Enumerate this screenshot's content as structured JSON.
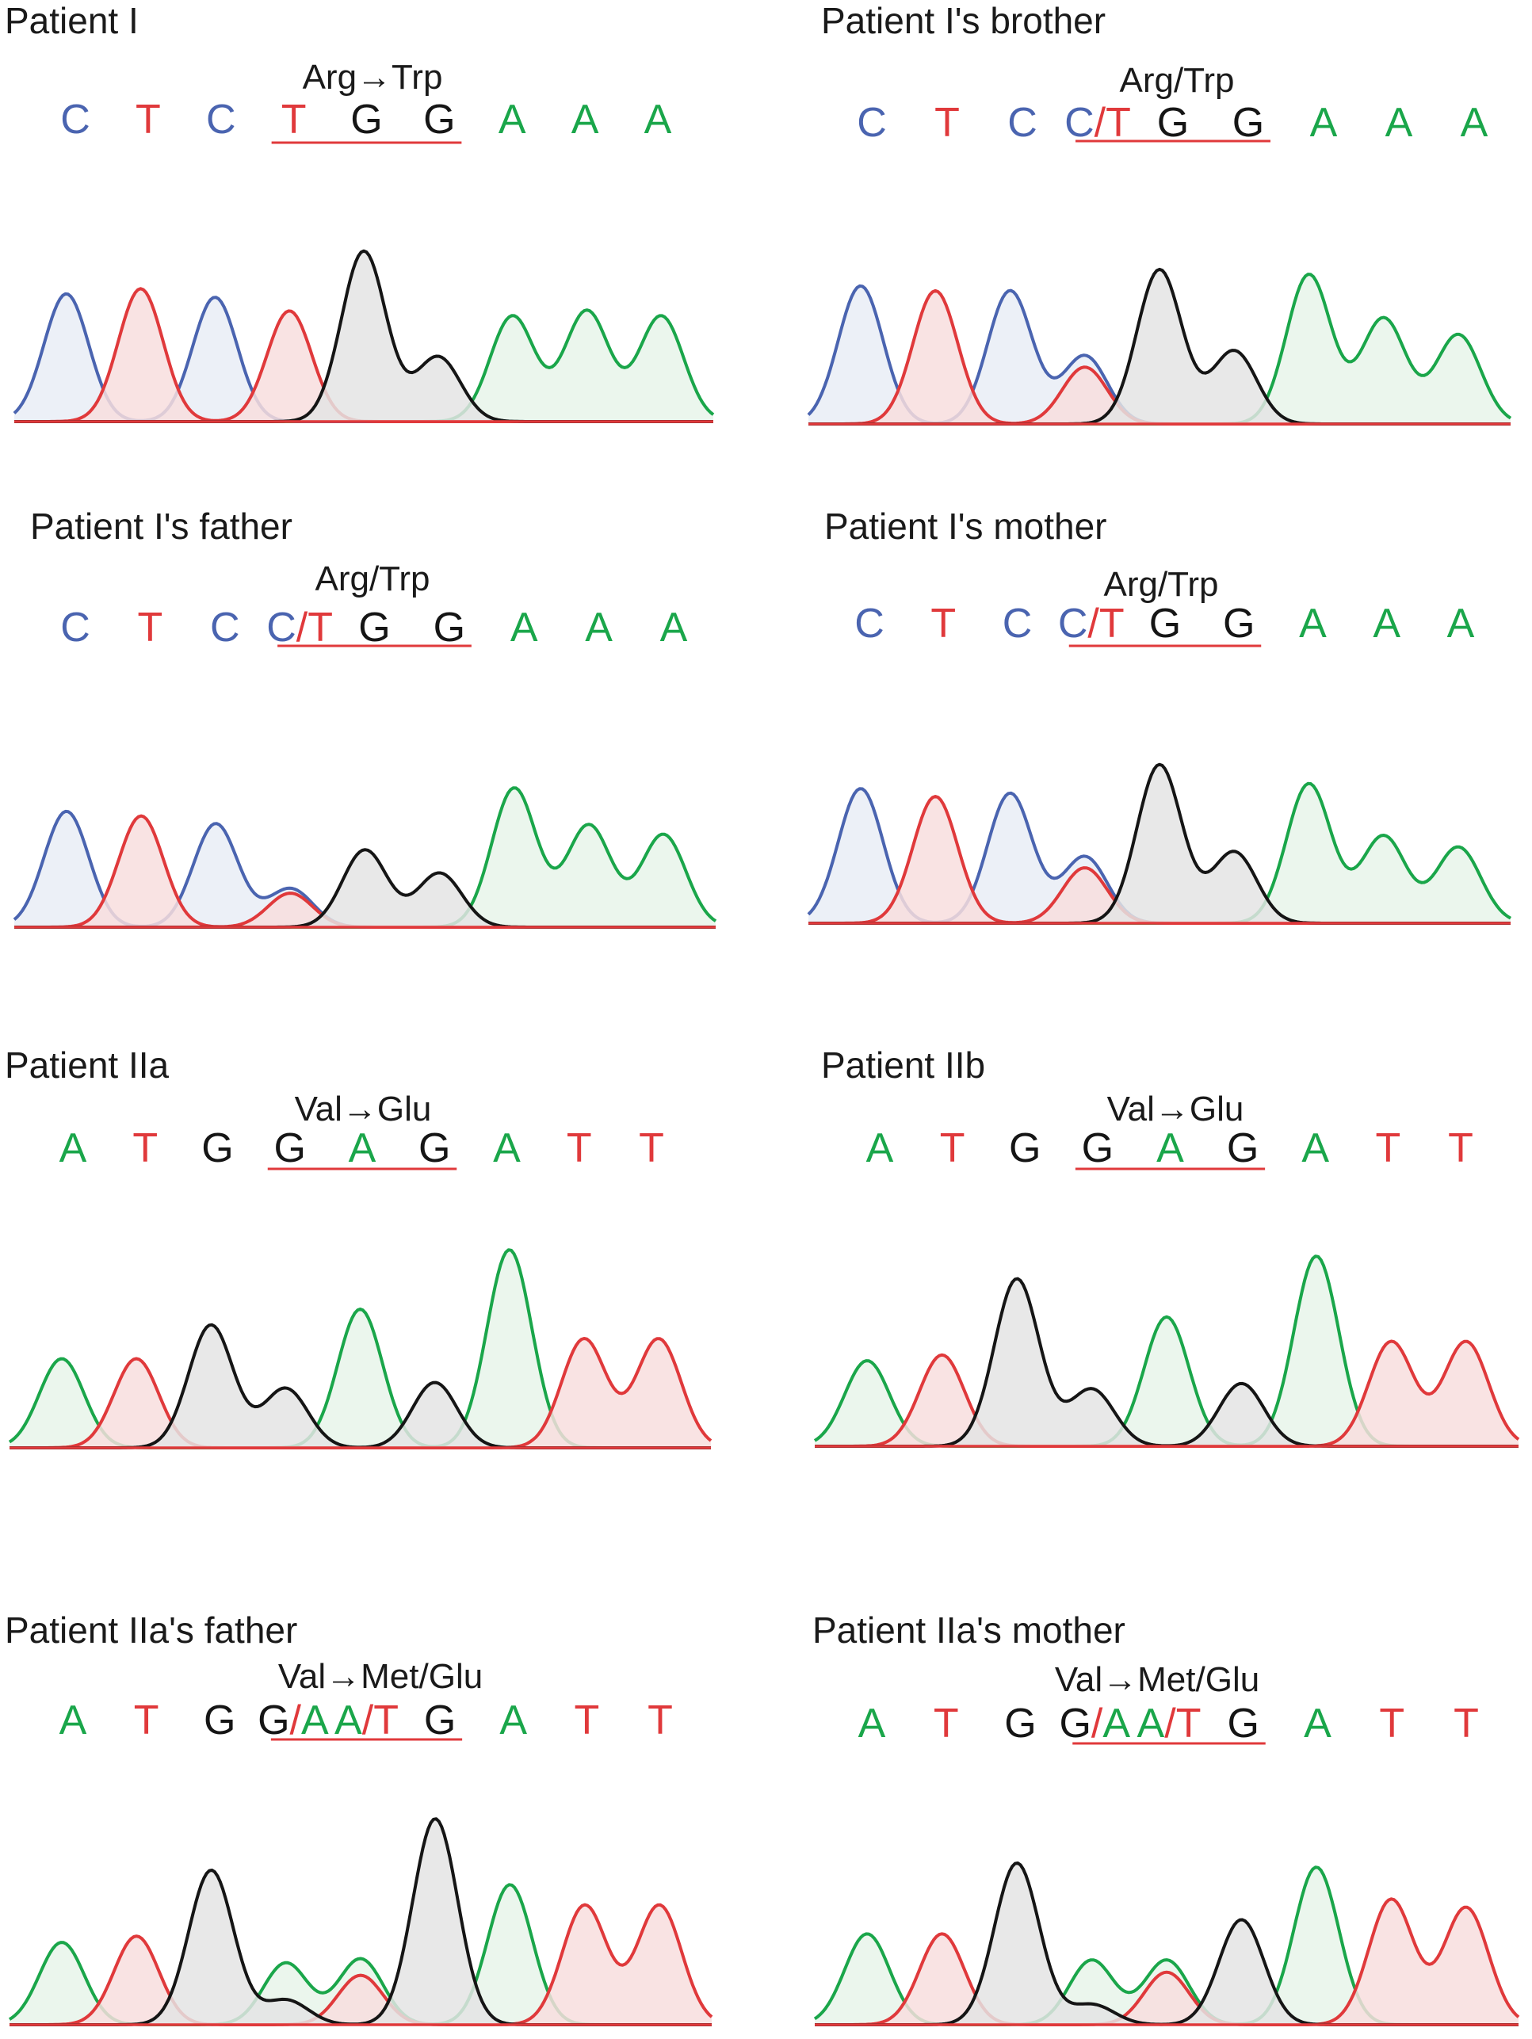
{
  "colors": {
    "A": "#1aa64a",
    "C": "#4a64b0",
    "G": "#151515",
    "T": "#e0393b",
    "underline": "#e0393b"
  },
  "chart_data": [
    {
      "type": "line",
      "title": "Patient I",
      "mutation_label": "Arg→Trp",
      "bases": [
        "C",
        "T",
        "C",
        "T",
        "G",
        "G",
        "A",
        "A",
        "A"
      ],
      "base_colors": [
        "C",
        "T",
        "C",
        "T",
        "G",
        "G",
        "A",
        "A",
        "A"
      ],
      "underlined_range": [
        3,
        5
      ],
      "peaks": [
        {
          "base": "C",
          "height": 0.75
        },
        {
          "base": "T",
          "height": 0.78
        },
        {
          "base": "C",
          "height": 0.73
        },
        {
          "base": "T",
          "height": 0.65
        },
        {
          "base": "G",
          "height": 1.0
        },
        {
          "base": "G",
          "height": 0.38
        },
        {
          "base": "A",
          "height": 0.62
        },
        {
          "base": "A",
          "height": 0.65
        },
        {
          "base": "A",
          "height": 0.62
        }
      ]
    },
    {
      "type": "line",
      "title": "Patient I's brother",
      "mutation_label": "Arg/Trp",
      "bases": [
        "C",
        "T",
        "C",
        "C/T",
        "G",
        "G",
        "A",
        "A",
        "A"
      ],
      "base_colors": [
        "C",
        "T",
        "C",
        "C/T",
        "G",
        "G",
        "A",
        "A",
        "A"
      ],
      "underlined_range": [
        3,
        5
      ],
      "peaks": [
        {
          "base": "C",
          "height": 0.85
        },
        {
          "base": "T",
          "height": 0.82
        },
        {
          "base": "C",
          "height": 0.82
        },
        {
          "base": "C/T",
          "height": 0.42,
          "secondary": 0.35
        },
        {
          "base": "G",
          "height": 0.95
        },
        {
          "base": "G",
          "height": 0.45
        },
        {
          "base": "A",
          "height": 0.92
        },
        {
          "base": "A",
          "height": 0.65
        },
        {
          "base": "A",
          "height": 0.55
        }
      ]
    },
    {
      "type": "line",
      "title": "Patient I's father",
      "mutation_label": "Arg/Trp",
      "bases": [
        "C",
        "T",
        "C",
        "C/T",
        "G",
        "G",
        "A",
        "A",
        "A"
      ],
      "base_colors": [
        "C",
        "T",
        "C",
        "C/T",
        "G",
        "G",
        "A",
        "A",
        "A"
      ],
      "underlined_range": [
        3,
        5
      ],
      "peaks": [
        {
          "base": "C",
          "height": 0.75
        },
        {
          "base": "T",
          "height": 0.72
        },
        {
          "base": "C",
          "height": 0.67
        },
        {
          "base": "C/T",
          "height": 0.25,
          "secondary": 0.22
        },
        {
          "base": "G",
          "height": 0.5
        },
        {
          "base": "G",
          "height": 0.35
        },
        {
          "base": "A",
          "height": 0.9
        },
        {
          "base": "A",
          "height": 0.66
        },
        {
          "base": "A",
          "height": 0.6
        }
      ]
    },
    {
      "type": "line",
      "title": "Patient I's mother",
      "mutation_label": "Arg/Trp",
      "bases": [
        "C",
        "T",
        "C",
        "C/T",
        "G",
        "G",
        "A",
        "A",
        "A"
      ],
      "base_colors": [
        "C",
        "T",
        "C",
        "C/T",
        "G",
        "G",
        "A",
        "A",
        "A"
      ],
      "underlined_range": [
        3,
        5
      ],
      "peaks": [
        {
          "base": "C",
          "height": 0.85
        },
        {
          "base": "T",
          "height": 0.8
        },
        {
          "base": "C",
          "height": 0.82
        },
        {
          "base": "C/T",
          "height": 0.42,
          "secondary": 0.35
        },
        {
          "base": "G",
          "height": 1.0
        },
        {
          "base": "G",
          "height": 0.45
        },
        {
          "base": "A",
          "height": 0.88
        },
        {
          "base": "A",
          "height": 0.55
        },
        {
          "base": "A",
          "height": 0.48
        }
      ]
    },
    {
      "type": "line",
      "title": "Patient IIa",
      "mutation_label": "Val→Glu",
      "bases": [
        "A",
        "T",
        "G",
        "G",
        "A",
        "G",
        "A",
        "T",
        "T"
      ],
      "base_colors": [
        "A",
        "T",
        "G",
        "G",
        "A",
        "G",
        "A",
        "T",
        "T"
      ],
      "underlined_range": [
        3,
        5
      ],
      "peaks": [
        {
          "base": "A",
          "height": 0.45
        },
        {
          "base": "T",
          "height": 0.45
        },
        {
          "base": "G",
          "height": 0.62
        },
        {
          "base": "G",
          "height": 0.3
        },
        {
          "base": "A",
          "height": 0.7
        },
        {
          "base": "G",
          "height": 0.33
        },
        {
          "base": "A",
          "height": 1.0
        },
        {
          "base": "T",
          "height": 0.55
        },
        {
          "base": "T",
          "height": 0.55
        }
      ]
    },
    {
      "type": "line",
      "title": "Patient IIb",
      "mutation_label": "Val→Glu",
      "bases": [
        "A",
        "T",
        "G",
        "G",
        "A",
        "G",
        "A",
        "T",
        "T"
      ],
      "base_colors": [
        "A",
        "T",
        "G",
        "G",
        "A",
        "G",
        "A",
        "T",
        "T"
      ],
      "underlined_range": [
        3,
        5
      ],
      "peaks": [
        {
          "base": "A",
          "height": 0.45
        },
        {
          "base": "T",
          "height": 0.48
        },
        {
          "base": "G",
          "height": 0.88
        },
        {
          "base": "G",
          "height": 0.3
        },
        {
          "base": "A",
          "height": 0.68
        },
        {
          "base": "G",
          "height": 0.33
        },
        {
          "base": "A",
          "height": 1.0
        },
        {
          "base": "T",
          "height": 0.55
        },
        {
          "base": "T",
          "height": 0.55
        }
      ]
    },
    {
      "type": "line",
      "title": "Patient IIa's father",
      "mutation_label": "Val→Met/Glu",
      "bases": [
        "A",
        "T",
        "G",
        "G/A",
        "A/T",
        "G",
        "A",
        "T",
        "T"
      ],
      "base_colors": [
        "A",
        "T",
        "G",
        "G/A",
        "A/T",
        "G",
        "A",
        "T",
        "T"
      ],
      "underlined_range": [
        3,
        5
      ],
      "peaks": [
        {
          "base": "A",
          "height": 0.4
        },
        {
          "base": "T",
          "height": 0.43
        },
        {
          "base": "G",
          "height": 0.75
        },
        {
          "base": "G/A",
          "height": 0.12,
          "secondary": 0.3
        },
        {
          "base": "A/T",
          "height": 0.32,
          "secondary": 0.24
        },
        {
          "base": "G",
          "height": 1.0
        },
        {
          "base": "A",
          "height": 0.68
        },
        {
          "base": "T",
          "height": 0.58
        },
        {
          "base": "T",
          "height": 0.58
        }
      ]
    },
    {
      "type": "line",
      "title": "Patient IIa's mother",
      "mutation_label": "Val→Met/Glu",
      "bases": [
        "A",
        "T",
        "G",
        "G/A",
        "A/T",
        "G",
        "A",
        "T",
        "T"
      ],
      "base_colors": [
        "A",
        "T",
        "G",
        "G/A",
        "A/T",
        "G",
        "A",
        "T",
        "T"
      ],
      "underlined_range": [
        3,
        5
      ],
      "peaks": [
        {
          "base": "A",
          "height": 0.45
        },
        {
          "base": "T",
          "height": 0.45
        },
        {
          "base": "G",
          "height": 0.8
        },
        {
          "base": "G/A",
          "height": 0.1,
          "secondary": 0.32
        },
        {
          "base": "A/T",
          "height": 0.32,
          "secondary": 0.26
        },
        {
          "base": "G",
          "height": 0.52
        },
        {
          "base": "A",
          "height": 0.78
        },
        {
          "base": "T",
          "height": 0.62
        },
        {
          "base": "T",
          "height": 0.58
        }
      ]
    }
  ]
}
